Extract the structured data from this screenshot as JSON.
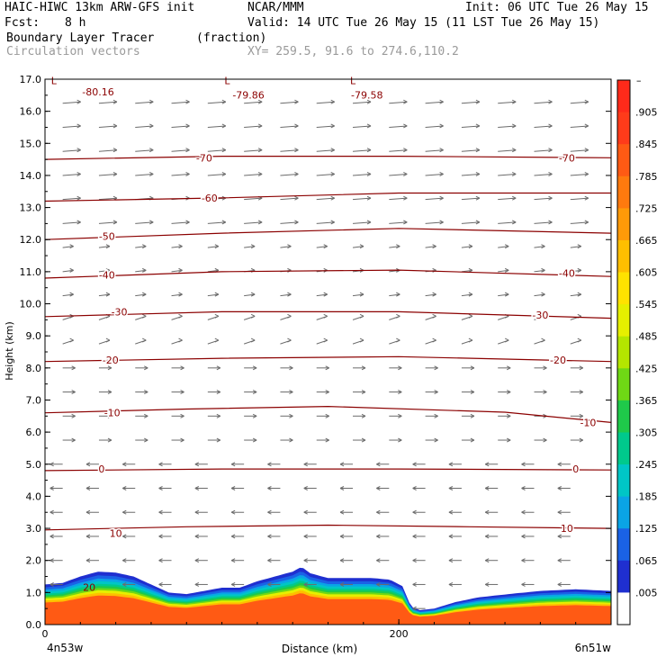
{
  "header": {
    "model": "HAIC-HIWC 13km ARW-GFS init",
    "org": "NCAR/MMM",
    "init": "Init: 06 UTC Tue 26 May 15",
    "fcst_label": "Fcst:",
    "fcst_value": "8 h",
    "valid": "Valid: 14 UTC Tue 26 May 15 (11 LST Tue 26 May 15)",
    "field1_name": "Boundary Layer Tracer",
    "field1_units": "(fraction)",
    "field2_name": "Circulation vectors",
    "xy": "XY= 259.5, 91.6 to 274.6,110.2"
  },
  "chart_data": {
    "type": "heatmap",
    "title": "Boundary Layer Tracer",
    "xlabel": "Distance (km)",
    "ylabel": "Height (km)",
    "xlim": [
      0,
      320
    ],
    "ylim": [
      0,
      17
    ],
    "x_ticks": [
      {
        "v": 0,
        "label": "0"
      },
      {
        "v": 200,
        "label": "200"
      }
    ],
    "x_end_labels": [
      "4n53w",
      "6n51w"
    ],
    "y_ticks": [
      {
        "v": 0,
        "label": "0.0"
      },
      {
        "v": 1,
        "label": "1.0"
      },
      {
        "v": 2,
        "label": "2.0"
      },
      {
        "v": 3,
        "label": "3.0"
      },
      {
        "v": 4,
        "label": "4.0"
      },
      {
        "v": 5,
        "label": "5.0"
      },
      {
        "v": 6,
        "label": "6.0"
      },
      {
        "v": 7,
        "label": "7.0"
      },
      {
        "v": 8,
        "label": "8.0"
      },
      {
        "v": 9,
        "label": "9.0"
      },
      {
        "v": 10,
        "label": "10.0"
      },
      {
        "v": 11,
        "label": "11.0"
      },
      {
        "v": 12,
        "label": "12.0"
      },
      {
        "v": 13,
        "label": "13.0"
      },
      {
        "v": 14,
        "label": "14.0"
      },
      {
        "v": 15,
        "label": "15.0"
      },
      {
        "v": 16,
        "label": "16.0"
      },
      {
        "v": 17,
        "label": "17.0"
      }
    ],
    "tracer_top_km": [
      [
        0,
        1.25
      ],
      [
        10,
        1.3
      ],
      [
        20,
        1.5
      ],
      [
        30,
        1.65
      ],
      [
        40,
        1.62
      ],
      [
        50,
        1.5
      ],
      [
        60,
        1.25
      ],
      [
        70,
        1.0
      ],
      [
        80,
        0.95
      ],
      [
        90,
        1.05
      ],
      [
        100,
        1.15
      ],
      [
        110,
        1.15
      ],
      [
        120,
        1.35
      ],
      [
        130,
        1.5
      ],
      [
        140,
        1.65
      ],
      [
        145,
        1.8
      ],
      [
        150,
        1.6
      ],
      [
        160,
        1.45
      ],
      [
        175,
        1.45
      ],
      [
        185,
        1.45
      ],
      [
        195,
        1.4
      ],
      [
        202,
        1.2
      ],
      [
        207,
        0.55
      ],
      [
        212,
        0.45
      ],
      [
        220,
        0.5
      ],
      [
        232,
        0.7
      ],
      [
        245,
        0.85
      ],
      [
        262,
        0.95
      ],
      [
        280,
        1.05
      ],
      [
        300,
        1.1
      ],
      [
        320,
        1.05
      ]
    ],
    "tracer_levels": [
      0.005,
      0.065,
      0.125,
      0.185,
      0.245,
      0.305,
      0.365,
      0.425,
      0.485,
      0.545,
      0.605,
      0.665,
      0.725,
      0.785,
      0.845,
      0.905
    ],
    "temp_contours": [
      {
        "label": "10",
        "points": [
          [
            0,
            2.95
          ],
          [
            80,
            3.05
          ],
          [
            160,
            3.1
          ],
          [
            240,
            3.05
          ],
          [
            320,
            3.0
          ]
        ],
        "labels_at": [
          [
            40,
            2.85
          ],
          [
            295,
            3.0
          ]
        ]
      },
      {
        "label": "0",
        "points": [
          [
            0,
            4.8
          ],
          [
            100,
            4.85
          ],
          [
            200,
            4.85
          ],
          [
            320,
            4.82
          ]
        ],
        "labels_at": [
          [
            32,
            4.85
          ],
          [
            300,
            4.85
          ]
        ]
      },
      {
        "label": "-10",
        "points": [
          [
            0,
            6.6
          ],
          [
            80,
            6.72
          ],
          [
            160,
            6.8
          ],
          [
            260,
            6.62
          ],
          [
            320,
            6.3
          ]
        ],
        "labels_at": [
          [
            38,
            6.6
          ],
          [
            307,
            6.3
          ]
        ]
      },
      {
        "label": "-20",
        "points": [
          [
            0,
            8.2
          ],
          [
            100,
            8.3
          ],
          [
            200,
            8.35
          ],
          [
            320,
            8.2
          ]
        ],
        "labels_at": [
          [
            37,
            8.25
          ],
          [
            290,
            8.25
          ]
        ]
      },
      {
        "label": "-30",
        "points": [
          [
            0,
            9.6
          ],
          [
            100,
            9.75
          ],
          [
            200,
            9.75
          ],
          [
            320,
            9.55
          ]
        ],
        "labels_at": [
          [
            42,
            9.75
          ],
          [
            280,
            9.65
          ]
        ]
      },
      {
        "label": "-40",
        "points": [
          [
            0,
            10.8
          ],
          [
            100,
            11.0
          ],
          [
            200,
            11.05
          ],
          [
            320,
            10.85
          ]
        ],
        "labels_at": [
          [
            35,
            10.9
          ],
          [
            295,
            10.95
          ]
        ]
      },
      {
        "label": "-50",
        "points": [
          [
            0,
            12.0
          ],
          [
            100,
            12.2
          ],
          [
            200,
            12.35
          ],
          [
            320,
            12.2
          ]
        ],
        "labels_at": [
          [
            35,
            12.1
          ]
        ]
      },
      {
        "label": "-60",
        "points": [
          [
            0,
            13.2
          ],
          [
            100,
            13.3
          ],
          [
            200,
            13.45
          ],
          [
            320,
            13.45
          ]
        ],
        "labels_at": [
          [
            93,
            13.3
          ]
        ]
      },
      {
        "label": "-70",
        "points": [
          [
            0,
            14.5
          ],
          [
            100,
            14.6
          ],
          [
            200,
            14.6
          ],
          [
            320,
            14.55
          ]
        ],
        "labels_at": [
          [
            90,
            14.55
          ],
          [
            295,
            14.55
          ]
        ]
      }
    ],
    "low_labels": [
      {
        "x": 30,
        "y": 16.5,
        "label": "-80.16"
      },
      {
        "x": 115,
        "y": 16.4,
        "label": "-79.86"
      },
      {
        "x": 182,
        "y": 16.4,
        "label": "-79.58"
      }
    ],
    "low_marks": [
      {
        "x": 5,
        "y": 16.85,
        "label": "L"
      },
      {
        "x": 103,
        "y": 16.85,
        "label": "L"
      },
      {
        "x": 174,
        "y": 16.85,
        "label": "L"
      }
    ],
    "colorbar": {
      "top_label": "–",
      "labels": [
        ".905",
        ".845",
        ".785",
        ".725",
        ".665",
        ".605",
        ".545",
        ".485",
        ".425",
        ".365",
        ".305",
        ".245",
        ".185",
        ".125",
        ".065",
        ".005"
      ],
      "colors": [
        "#ff2a1a",
        "#ff3b1a",
        "#ff5a14",
        "#ff7a0e",
        "#ff9a08",
        "#ffbf00",
        "#ffe200",
        "#e6ef00",
        "#b4e600",
        "#6fd815",
        "#1fc94a",
        "#00c98c",
        "#00c6c6",
        "#0aa4e6",
        "#1a62e6",
        "#1f2fd0",
        "#ffffff"
      ]
    }
  }
}
